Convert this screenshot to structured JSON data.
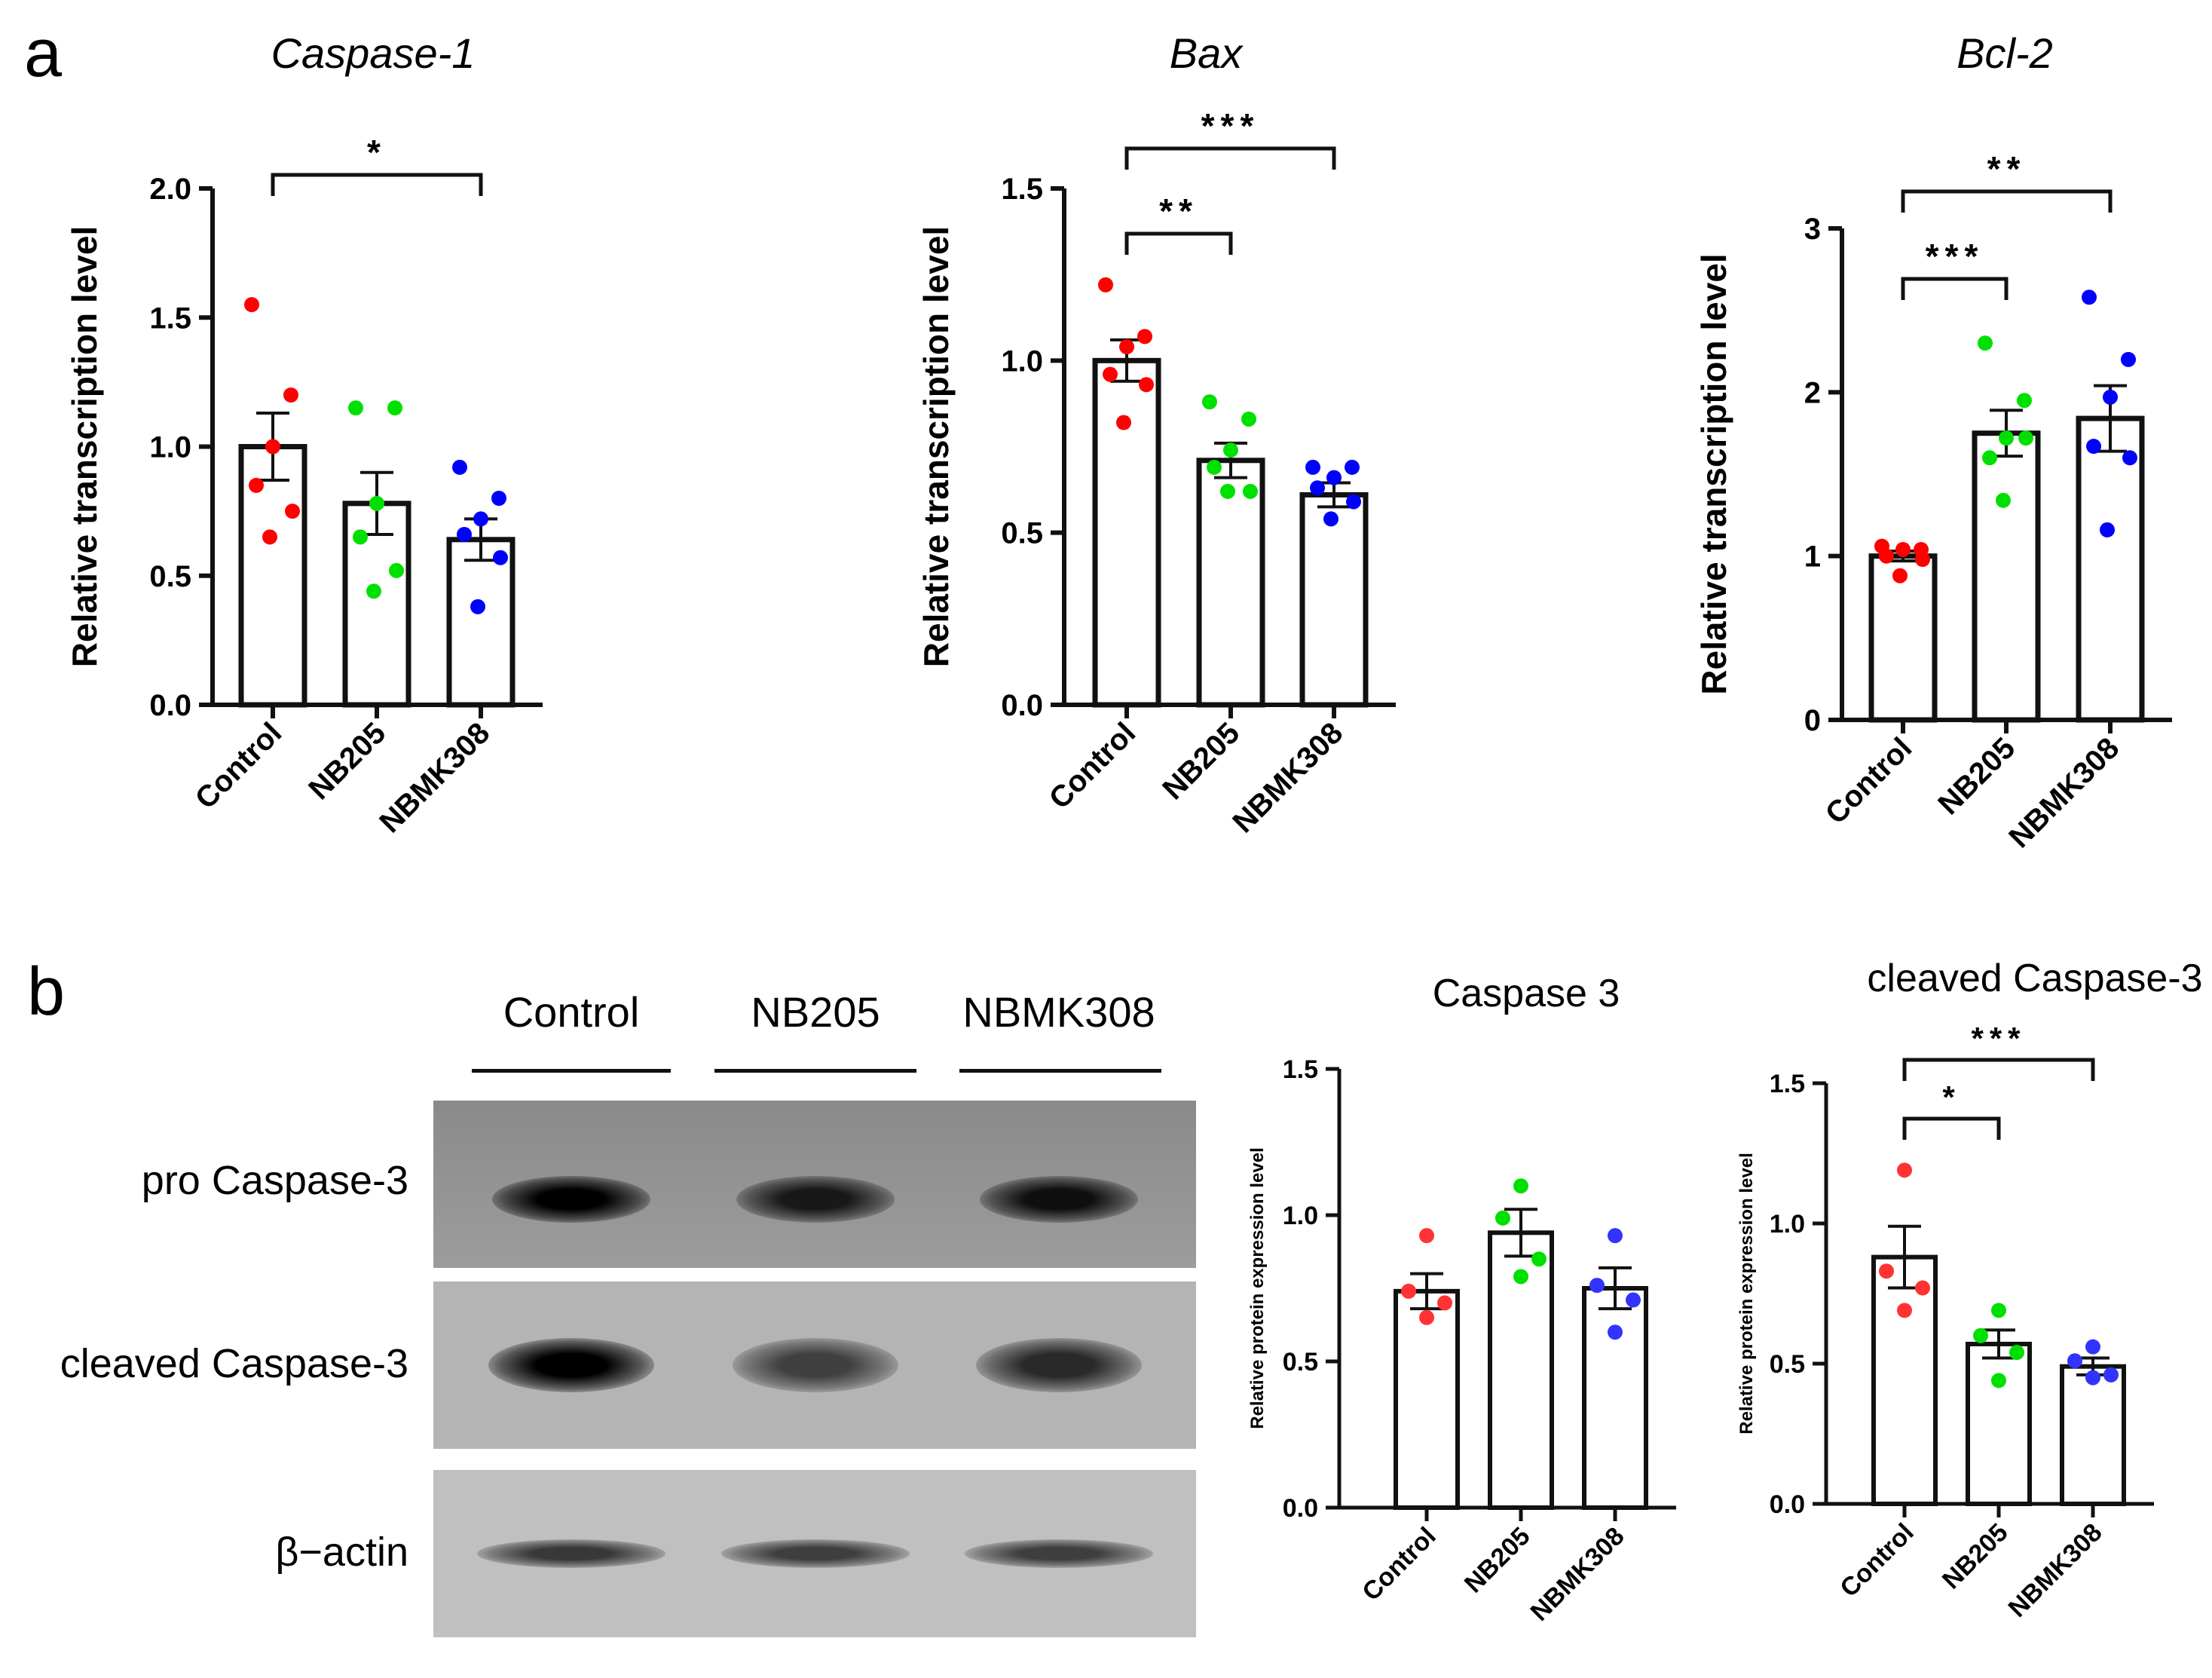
{
  "panel_labels": {
    "a": "a",
    "b": "b"
  },
  "chart_data": [
    {
      "type": "bar",
      "title": "Caspase-1",
      "ylabel": "Relative transcription level",
      "categories": [
        "Control",
        "NB205",
        "NBMK308"
      ],
      "values": [
        1.0,
        0.78,
        0.64
      ],
      "sem": [
        0.13,
        0.12,
        0.08
      ],
      "points": [
        [
          1.55,
          1.2,
          1.0,
          0.85,
          0.75,
          0.65
        ],
        [
          1.15,
          1.15,
          0.78,
          0.65,
          0.52,
          0.44
        ],
        [
          0.92,
          0.8,
          0.72,
          0.66,
          0.57,
          0.38
        ]
      ],
      "point_colors": [
        "#ff0000",
        "#00e000",
        "#0000ff"
      ],
      "ylim": [
        0,
        2.0
      ],
      "yticks": [
        "0.0",
        "0.5",
        "1.0",
        "1.5",
        "2.0"
      ],
      "significance": [
        {
          "from": "Control",
          "to": "NBMK308",
          "label": "*"
        }
      ]
    },
    {
      "type": "bar",
      "title": "Bax",
      "ylabel": "Relative transcription level",
      "categories": [
        "Control",
        "NB205",
        "NBMK308"
      ],
      "values": [
        1.0,
        0.71,
        0.61
      ],
      "sem": [
        0.06,
        0.05,
        0.035
      ],
      "points": [
        [
          1.22,
          1.07,
          1.04,
          0.96,
          0.93,
          0.82
        ],
        [
          0.88,
          0.83,
          0.74,
          0.69,
          0.62,
          0.62
        ],
        [
          0.69,
          0.69,
          0.66,
          0.63,
          0.59,
          0.54
        ]
      ],
      "point_colors": [
        "#ff0000",
        "#00e000",
        "#0000ff"
      ],
      "ylim": [
        0,
        1.5
      ],
      "yticks": [
        "0.0",
        "0.5",
        "1.0",
        "1.5"
      ],
      "significance": [
        {
          "from": "Control",
          "to": "NB205",
          "label": "**"
        },
        {
          "from": "Control",
          "to": "NBMK308",
          "label": "***"
        }
      ]
    },
    {
      "type": "bar",
      "title": "Bcl-2",
      "ylabel": "Relative transcription level",
      "categories": [
        "Control",
        "NB205",
        "NBMK308"
      ],
      "values": [
        1.0,
        1.75,
        1.84
      ],
      "sem": [
        0.03,
        0.14,
        0.2
      ],
      "points": [
        [
          1.06,
          1.04,
          1.04,
          1.0,
          0.98,
          0.88
        ],
        [
          2.3,
          1.95,
          1.72,
          1.6,
          1.72,
          1.34
        ],
        [
          2.58,
          2.2,
          1.97,
          1.67,
          1.6,
          1.16
        ]
      ],
      "point_colors": [
        "#ff0000",
        "#00e000",
        "#0000ff"
      ],
      "ylim": [
        0,
        3
      ],
      "yticks": [
        "0",
        "1",
        "2",
        "3"
      ],
      "significance": [
        {
          "from": "Control",
          "to": "NB205",
          "label": "***"
        },
        {
          "from": "Control",
          "to": "NBMK308",
          "label": "**"
        }
      ]
    },
    {
      "type": "bar",
      "title": "Caspase 3",
      "ylabel": "Relative protein expression level",
      "categories": [
        "Control",
        "NB205",
        "NBMK308"
      ],
      "values": [
        0.74,
        0.94,
        0.75
      ],
      "sem": [
        0.06,
        0.08,
        0.07
      ],
      "points": [
        [
          0.93,
          0.74,
          0.7,
          0.65
        ],
        [
          1.1,
          0.99,
          0.85,
          0.79
        ],
        [
          0.93,
          0.76,
          0.71,
          0.6
        ]
      ],
      "point_colors": [
        "#ff3333",
        "#00e000",
        "#3333ff"
      ],
      "ylim": [
        0,
        1.5
      ],
      "yticks": [
        "0.0",
        "0.5",
        "1.0",
        "1.5"
      ],
      "significance": []
    },
    {
      "type": "bar",
      "title": "cleaved Caspase-3",
      "ylabel": "Relative protein expression level",
      "categories": [
        "Control",
        "NB205",
        "NBMK308"
      ],
      "values": [
        0.88,
        0.57,
        0.49
      ],
      "sem": [
        0.11,
        0.05,
        0.03
      ],
      "points": [
        [
          1.19,
          0.83,
          0.77,
          0.69
        ],
        [
          0.69,
          0.6,
          0.54,
          0.44
        ],
        [
          0.56,
          0.51,
          0.46,
          0.45
        ]
      ],
      "point_colors": [
        "#ff3333",
        "#00e000",
        "#3333ff"
      ],
      "ylim": [
        0,
        1.5
      ],
      "yticks": [
        "0.0",
        "0.5",
        "1.0",
        "1.5"
      ],
      "significance": [
        {
          "from": "Control",
          "to": "NB205",
          "label": "*"
        },
        {
          "from": "Control",
          "to": "NBMK308",
          "label": "***"
        }
      ]
    }
  ],
  "western_blot": {
    "lanes": [
      "Control",
      "NB205",
      "NBMK308"
    ],
    "rows": [
      {
        "label": "pro Caspase-3",
        "intensities": [
          1.0,
          0.75,
          0.85
        ]
      },
      {
        "label": "cleaved Caspase-3",
        "intensities": [
          1.0,
          0.45,
          0.65
        ]
      },
      {
        "label": "β−actin",
        "intensities": [
          0.55,
          0.5,
          0.5
        ]
      }
    ]
  }
}
